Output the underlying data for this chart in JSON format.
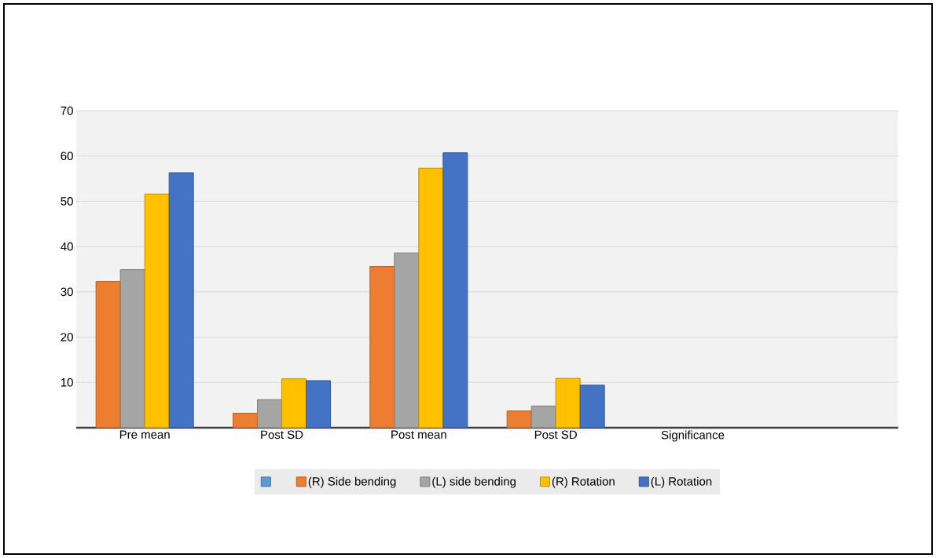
{
  "chart_data": {
    "type": "bar",
    "categories": [
      "Pre mean",
      "Post SD",
      "Post mean",
      "Post SD",
      "Significance",
      null
    ],
    "series": [
      {
        "color": "#5b9bd5",
        "values": [
          null,
          null,
          null,
          null,
          null,
          null
        ]
      },
      {
        "name": "(R) Side bending",
        "color": "#ed7d31",
        "values": [
          32.3,
          3.2,
          35.6,
          3.7,
          null,
          null
        ]
      },
      {
        "name": "(L) side bending",
        "color": "#a5a5a5",
        "values": [
          34.9,
          6.2,
          38.6,
          4.8,
          null,
          null
        ]
      },
      {
        "name": "(R) Rotation",
        "color": "#ffc000",
        "values": [
          51.6,
          10.8,
          57.3,
          10.9,
          null,
          null
        ]
      },
      {
        "name": "(L) Rotation",
        "color": "#4472c4",
        "values": [
          56.3,
          10.4,
          60.7,
          9.4,
          null,
          null
        ]
      }
    ],
    "ylim": [
      0,
      70
    ],
    "yticks": [
      10,
      20,
      30,
      40,
      50,
      60,
      70
    ],
    "grid": "y",
    "legend": "bottom"
  }
}
